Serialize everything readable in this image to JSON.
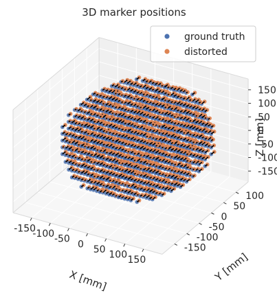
{
  "chart_data": {
    "type": "scatter",
    "projection": "3d",
    "title": "3D marker positions",
    "xlabel": "X [mm]",
    "ylabel": "Y [mm]",
    "zlabel": "Z [mm]",
    "x_ticks": [
      -150,
      -100,
      -50,
      0,
      50,
      100,
      150
    ],
    "y_ticks": [
      -150,
      -100,
      -50,
      0,
      50,
      100
    ],
    "z_ticks": [
      -150,
      -100,
      -50,
      0,
      50,
      100,
      150
    ],
    "xlim": [
      -200,
      200
    ],
    "ylim": [
      -200,
      150
    ],
    "zlim": [
      -190,
      190
    ],
    "grid": true,
    "legend_position": "top-right",
    "marker_grid": {
      "shape": "sphere",
      "spacing_mm": 25,
      "radius_mm": 175,
      "note": "markers lie on a regular cubic grid clipped to a sphere; black segments connect each ground-truth marker to its distorted position"
    },
    "series": [
      {
        "name": "ground truth",
        "color": "#4c72b0"
      },
      {
        "name": "distorted",
        "color": "#dd8452"
      }
    ],
    "distortion_segments_color": "#000000"
  }
}
